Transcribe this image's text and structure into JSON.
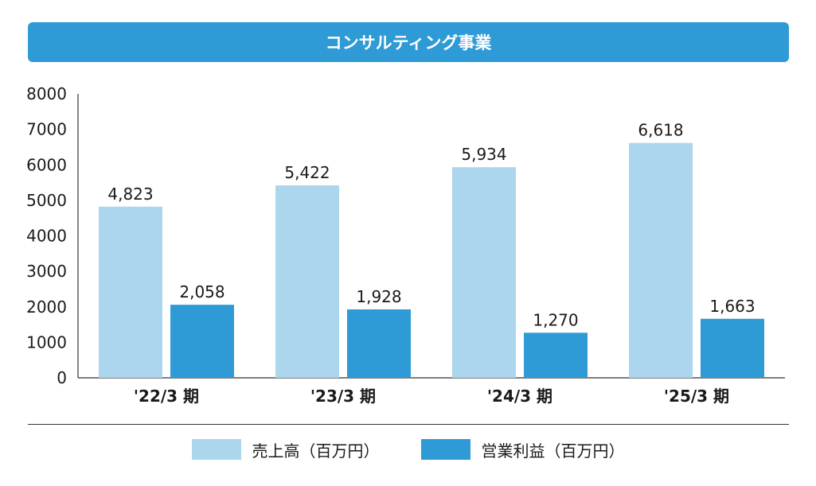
{
  "header": {
    "title": "コンサルティング事業"
  },
  "colors": {
    "banner": "#2e9ad6",
    "sales": "#acd6ee",
    "profit": "#2e9ad6"
  },
  "chart_data": {
    "type": "bar",
    "title": "コンサルティング事業",
    "categories": [
      "'22/3 期",
      "'23/3 期",
      "'24/3 期",
      "'25/3 期"
    ],
    "series": [
      {
        "name": "売上高（百万円）",
        "values": [
          4823,
          5422,
          5934,
          6618
        ],
        "labels": [
          "4,823",
          "5,422",
          "5,934",
          "6,618"
        ],
        "color": "#acd6ee"
      },
      {
        "name": "営業利益（百万円）",
        "values": [
          2058,
          1928,
          1270,
          1663
        ],
        "labels": [
          "2,058",
          "1,928",
          "1,270",
          "1,663"
        ],
        "color": "#2e9ad6"
      }
    ],
    "yticks": [
      "0",
      "1000",
      "2000",
      "3000",
      "4000",
      "5000",
      "6000",
      "7000",
      "8000"
    ],
    "ylim": [
      0,
      8000
    ],
    "grid": false,
    "legend": "bottom"
  }
}
